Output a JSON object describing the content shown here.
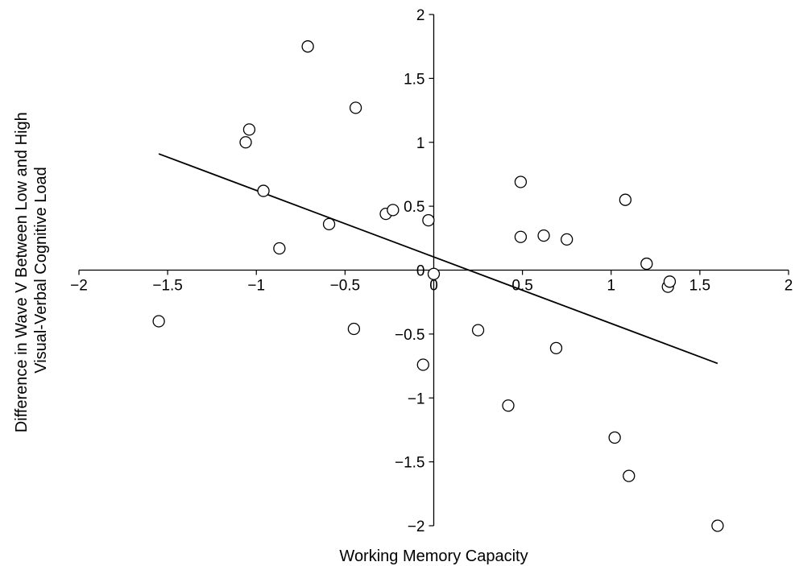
{
  "chart_data": {
    "type": "scatter",
    "xlabel": "Working Memory Capacity",
    "ylabel": "Difference in Wave V Between Low and High Visual-Verbal Cognitive Load",
    "ylabel_lines": [
      "Difference in Wave V Between Low and High",
      "Visual-Verbal Cognitive Load"
    ],
    "xlim": [
      -2,
      2
    ],
    "ylim": [
      -2,
      2
    ],
    "x_ticks": [
      -2,
      -1.5,
      -1,
      -0.5,
      0,
      0.5,
      1,
      1.5,
      2
    ],
    "y_ticks": [
      2,
      1.5,
      1,
      0.5,
      0,
      -0.5,
      -1,
      -1.5,
      -2
    ],
    "x_tick_labels": [
      "−2",
      "−1.5",
      "−1",
      "−0.5",
      "0",
      "0.5",
      "1",
      "1.5",
      "2"
    ],
    "y_tick_labels": [
      "2",
      "1.5",
      "1",
      "0.5",
      "0",
      "−0.5",
      "−1",
      "−1.5",
      "−2"
    ],
    "grid": false,
    "legend": "none",
    "points": [
      {
        "x": -1.55,
        "y": -0.4
      },
      {
        "x": -1.06,
        "y": 1.0
      },
      {
        "x": -1.04,
        "y": 1.1
      },
      {
        "x": -0.96,
        "y": 0.62
      },
      {
        "x": -0.87,
        "y": 0.17
      },
      {
        "x": -0.71,
        "y": 1.75
      },
      {
        "x": -0.59,
        "y": 0.36
      },
      {
        "x": -0.45,
        "y": -0.46
      },
      {
        "x": -0.44,
        "y": 1.27
      },
      {
        "x": -0.27,
        "y": 0.44
      },
      {
        "x": -0.23,
        "y": 0.47
      },
      {
        "x": -0.06,
        "y": -0.74
      },
      {
        "x": -0.03,
        "y": 0.39
      },
      {
        "x": 0.0,
        "y": -0.03
      },
      {
        "x": 0.25,
        "y": -0.47
      },
      {
        "x": 0.42,
        "y": -1.06
      },
      {
        "x": 0.49,
        "y": 0.69
      },
      {
        "x": 0.49,
        "y": 0.26
      },
      {
        "x": 0.62,
        "y": 0.27
      },
      {
        "x": 0.69,
        "y": -0.61
      },
      {
        "x": 0.75,
        "y": 0.24
      },
      {
        "x": 1.02,
        "y": -1.31
      },
      {
        "x": 1.08,
        "y": 0.55
      },
      {
        "x": 1.1,
        "y": -1.61
      },
      {
        "x": 1.2,
        "y": 0.05
      },
      {
        "x": 1.32,
        "y": -0.13
      },
      {
        "x": 1.33,
        "y": -0.09
      },
      {
        "x": 1.6,
        "y": -2.0
      }
    ],
    "trend_line": {
      "x": [
        -1.55,
        1.6
      ],
      "y": [
        0.91,
        -0.73
      ]
    }
  }
}
